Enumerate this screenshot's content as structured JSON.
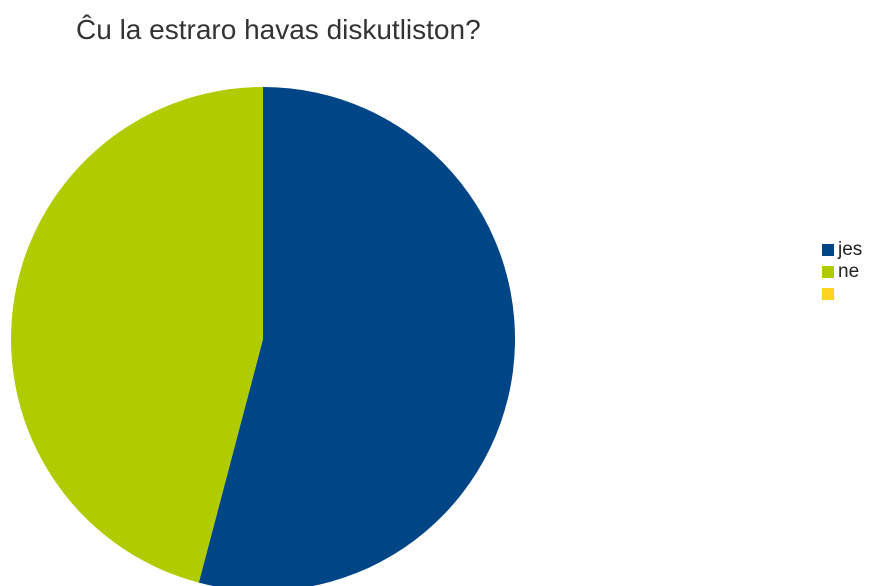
{
  "chart_data": {
    "type": "pie",
    "title": "Ĉu la estraro havas diskutliston?",
    "categories": [
      "jes",
      "ne",
      ""
    ],
    "values": [
      54.1,
      45.9,
      0
    ],
    "colors": [
      "#004586",
      "#b0cc00",
      "#ffd320"
    ],
    "start_angle_deg": 0,
    "direction": "clockwise",
    "legend_position": "right"
  }
}
